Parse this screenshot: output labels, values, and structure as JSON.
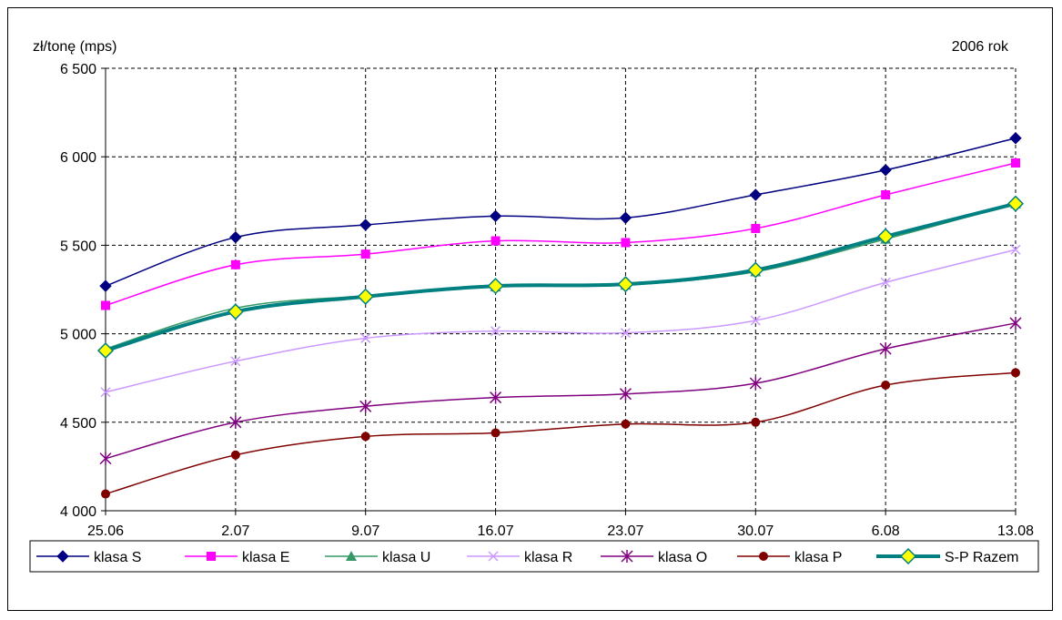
{
  "chart_data": {
    "type": "line",
    "ylabel": "zł/tonę (mps)",
    "annotation": "2006 rok",
    "categories": [
      "25.06",
      "2.07",
      "9.07",
      "16.07",
      "23.07",
      "30.07",
      "6.08",
      "13.08"
    ],
    "y_ticks": [
      "4 000",
      "4 500",
      "5 000",
      "5 500",
      "6 000",
      "6 500"
    ],
    "ylim": [
      4000,
      6500
    ],
    "grid": true,
    "legend_position": "bottom",
    "series": [
      {
        "name": "klasa S",
        "color": "#000080",
        "marker": "diamond",
        "values": [
          5270,
          5545,
          5615,
          5665,
          5655,
          5785,
          5925,
          6105
        ]
      },
      {
        "name": "klasa E",
        "color": "#FF00FF",
        "marker": "square",
        "values": [
          5160,
          5390,
          5450,
          5525,
          5515,
          5595,
          5785,
          5965
        ]
      },
      {
        "name": "klasa U",
        "color": "#339966",
        "marker": "triangle",
        "values": [
          4915,
          5145,
          5215,
          5265,
          5275,
          5350,
          5535,
          5735
        ]
      },
      {
        "name": "klasa R",
        "color": "#CC99FF",
        "marker": "x",
        "values": [
          4670,
          4845,
          4975,
          5015,
          5005,
          5075,
          5290,
          5475
        ]
      },
      {
        "name": "klasa O",
        "color": "#800080",
        "marker": "star",
        "values": [
          4295,
          4500,
          4590,
          4640,
          4660,
          4720,
          4915,
          5060
        ]
      },
      {
        "name": "klasa P",
        "color": "#800000",
        "marker": "circle",
        "values": [
          4095,
          4315,
          4420,
          4440,
          4490,
          4500,
          4710,
          4780
        ]
      },
      {
        "name": "S-P Razem",
        "color": "#008080",
        "marker": "diamond-yellow",
        "values": [
          4905,
          5125,
          5210,
          5270,
          5280,
          5360,
          5550,
          5735
        ]
      }
    ]
  }
}
